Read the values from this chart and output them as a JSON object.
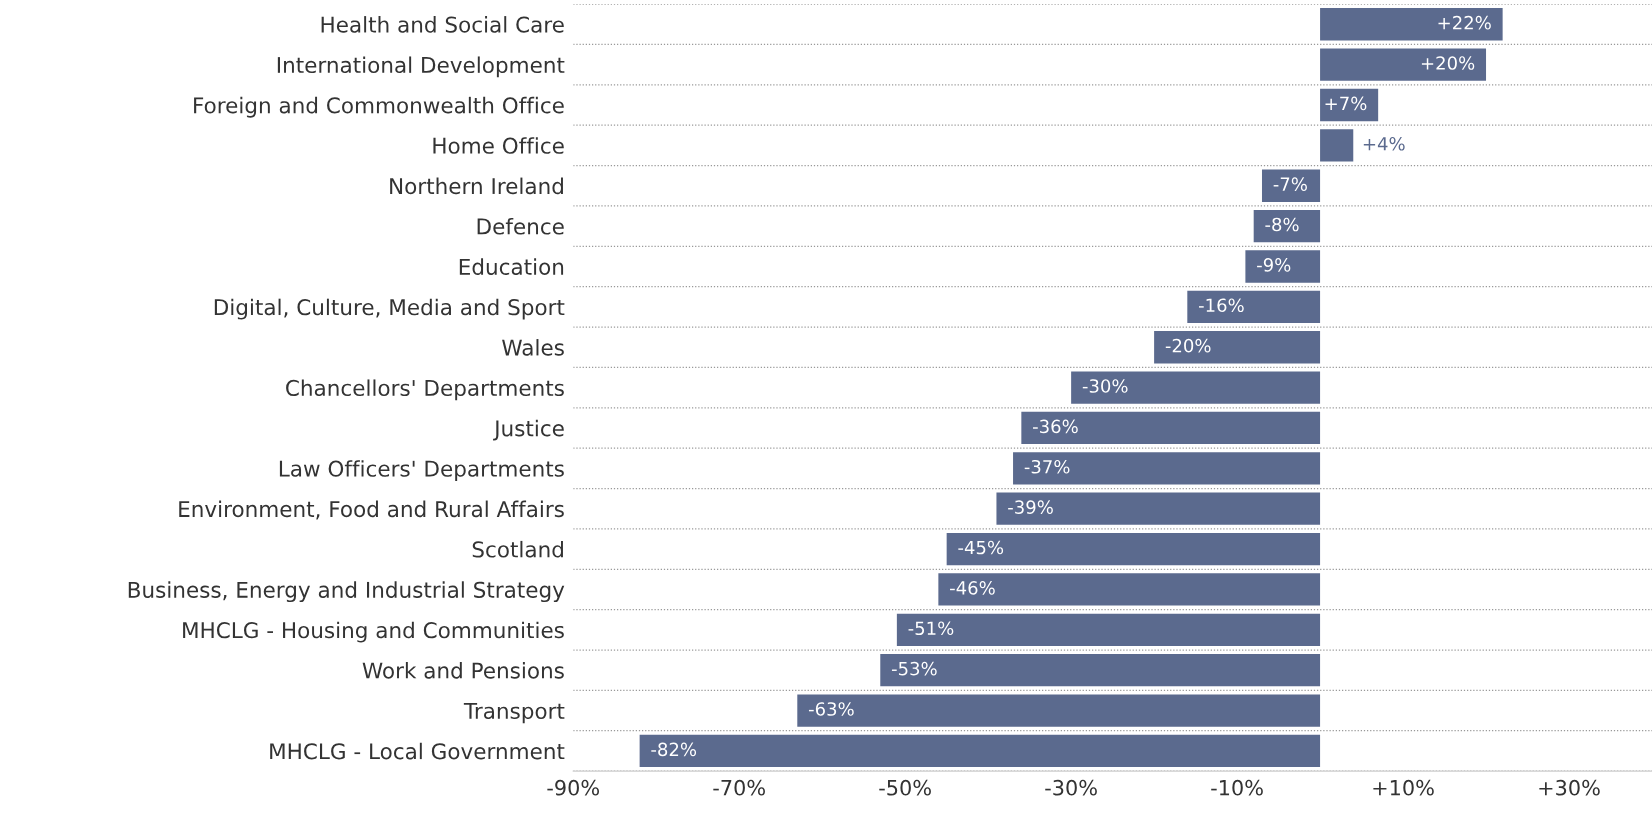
{
  "chart_data": {
    "type": "bar",
    "orientation": "horizontal",
    "categories": [
      "Health and Social Care",
      "International Development",
      "Foreign and Commonwealth Office",
      "Home Office",
      "Northern Ireland",
      "Defence",
      "Education",
      "Digital, Culture, Media and Sport",
      "Wales",
      "Chancellors' Departments",
      "Justice",
      "Law Officers' Departments",
      "Environment, Food and Rural Affairs",
      "Scotland",
      "Business, Energy and Industrial Strategy",
      "MHCLG - Housing and Communities",
      "Work and Pensions",
      "Transport",
      "MHCLG - Local Government"
    ],
    "values": [
      22,
      20,
      7,
      4,
      -7,
      -8,
      -9,
      -16,
      -20,
      -30,
      -36,
      -37,
      -39,
      -45,
      -46,
      -51,
      -53,
      -63,
      -82
    ],
    "value_labels": [
      "+22%",
      "+20%",
      "+7%",
      "+4%",
      "-7%",
      "-8%",
      "-9%",
      "-16%",
      "-20%",
      "-30%",
      "-36%",
      "-37%",
      "-39%",
      "-45%",
      "-46%",
      "-51%",
      "-53%",
      "-63%",
      "-82%"
    ],
    "color": "#5b6a8e",
    "xlim": [
      -90,
      40
    ],
    "xticks": [
      {
        "value": -90,
        "label": "-90%"
      },
      {
        "value": -70,
        "label": "-70%"
      },
      {
        "value": -50,
        "label": "-50%"
      },
      {
        "value": -30,
        "label": "-30%"
      },
      {
        "value": -10,
        "label": "-10%"
      },
      {
        "value": 10,
        "label": "+10%"
      },
      {
        "value": 30,
        "label": "+30%"
      }
    ],
    "grid": "y"
  }
}
